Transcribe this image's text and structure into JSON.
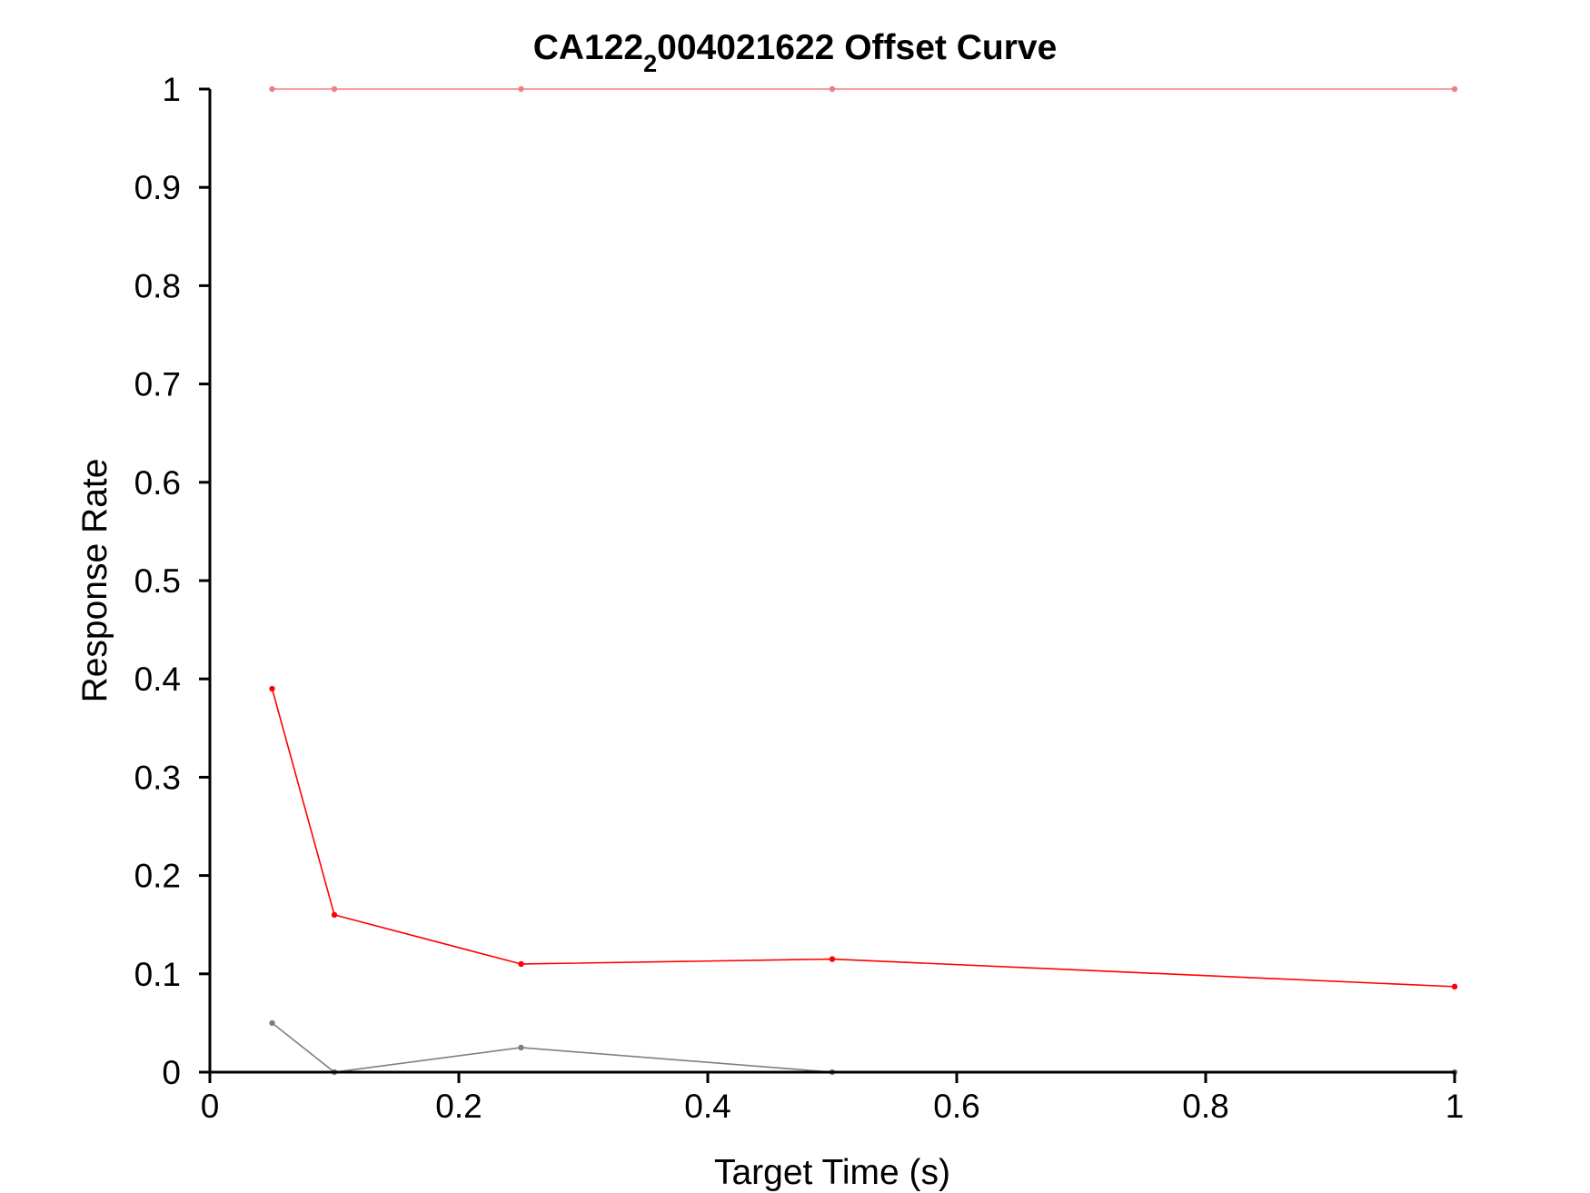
{
  "chart_data": {
    "type": "line",
    "title": "CA122",
    "title_sub": "2",
    "title_rest": "004021622 Offset Curve",
    "xlabel": "Target Time (s)",
    "ylabel": "Response Rate",
    "xlim": [
      0,
      1
    ],
    "ylim": [
      0,
      1
    ],
    "xticks": [
      0,
      0.2,
      0.4,
      0.6,
      0.8,
      1
    ],
    "xtick_labels": [
      "0",
      "0.2",
      "0.4",
      "0.6",
      "0.8",
      "1"
    ],
    "yticks": [
      0,
      0.1,
      0.2,
      0.3,
      0.4,
      0.5,
      0.6,
      0.7,
      0.8,
      0.9,
      1
    ],
    "ytick_labels": [
      "0",
      "0.1",
      "0.2",
      "0.3",
      "0.4",
      "0.5",
      "0.6",
      "0.7",
      "0.8",
      "0.9",
      "1"
    ],
    "grid": false,
    "x": [
      0.05,
      0.1,
      0.25,
      0.5,
      1
    ],
    "series": [
      {
        "color": "#f08080",
        "values": [
          1,
          1,
          1,
          1,
          1
        ]
      },
      {
        "color": "#ff0000",
        "values": [
          0.39,
          0.16,
          0.11,
          0.115,
          0.087
        ]
      },
      {
        "color": "#808080",
        "values": [
          0.05,
          0,
          0.025,
          0,
          0
        ]
      }
    ]
  }
}
